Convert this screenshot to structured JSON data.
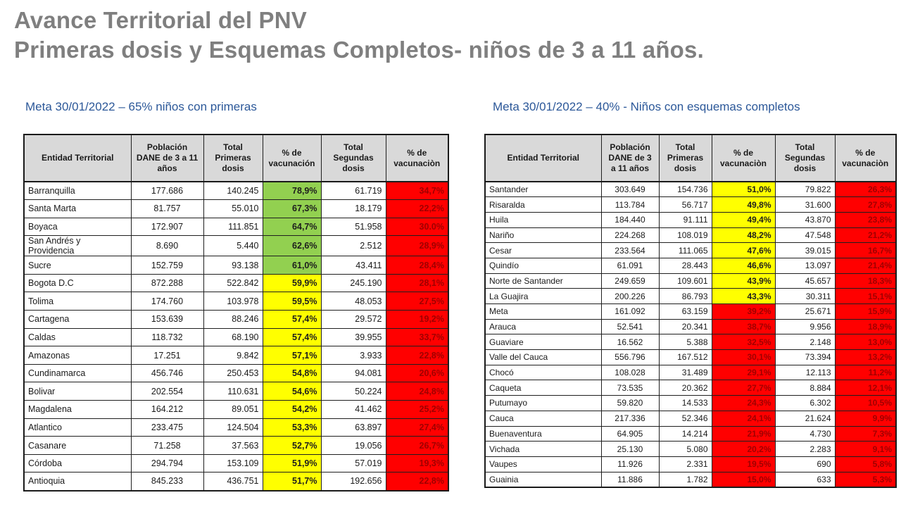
{
  "title": {
    "line1": "Avance Territorial del PNV",
    "line2": "Primeras dosis y Esquemas Completos- niños de 3 a 11 años."
  },
  "colors": {
    "title_gray": "#7f7f7f",
    "subtitle_blue": "#2c5899",
    "header_bg": "#d9d9d9",
    "green": "#92d050",
    "yellow": "#ffff00",
    "red": "#ff0000",
    "red_cell_text": "#a00000"
  },
  "tables": [
    {
      "subtitle": "Meta 30/01/2022 – 65% niños con primeras",
      "columns": [
        "Entidad Territorial",
        "Población DANE de 3 a 11 años",
        "Total Primeras dosis",
        "% de vacunación",
        "Total Segundas dosis",
        "% de vacunaciòn"
      ],
      "rows": [
        [
          "Barranquilla",
          "177.686",
          "140.245",
          "78,9%",
          "green",
          "61.719",
          "34,7%"
        ],
        [
          "Santa Marta",
          "81.757",
          "55.010",
          "67,3%",
          "green",
          "18.179",
          "22,2%"
        ],
        [
          "Boyaca",
          "172.907",
          "111.851",
          "64,7%",
          "green",
          "51.958",
          "30.0%"
        ],
        [
          "San Andrés y Providencia",
          "8.690",
          "5.440",
          "62,6%",
          "green",
          "2.512",
          "28,9%"
        ],
        [
          "Sucre",
          "152.759",
          "93.138",
          "61,0%",
          "green",
          "43.411",
          "28,4%"
        ],
        [
          "Bogota D.C",
          "872.288",
          "522.842",
          "59,9%",
          "yellow",
          "245.190",
          "28,1%"
        ],
        [
          "Tolima",
          "174.760",
          "103.978",
          "59,5%",
          "yellow",
          "48.053",
          "27,5%"
        ],
        [
          "Cartagena",
          "153.639",
          "88.246",
          "57,4%",
          "yellow",
          "29.572",
          "19,2%"
        ],
        [
          "Caldas",
          "118.732",
          "68.190",
          "57,4%",
          "yellow",
          "39.955",
          "33,7%"
        ],
        [
          "Amazonas",
          "17.251",
          "9.842",
          "57,1%",
          "yellow",
          "3.933",
          "22,8%"
        ],
        [
          "Cundinamarca",
          "456.746",
          "250.453",
          "54,8%",
          "yellow",
          "94.081",
          "20,6%"
        ],
        [
          "Bolivar",
          "202.554",
          "110.631",
          "54,6%",
          "yellow",
          "50.224",
          "24,8%"
        ],
        [
          "Magdalena",
          "164.212",
          "89.051",
          "54,2%",
          "yellow",
          "41.462",
          "25,2%"
        ],
        [
          "Atlantico",
          "233.475",
          "124.504",
          "53,3%",
          "yellow",
          "63.897",
          "27,4%"
        ],
        [
          "Casanare",
          "71.258",
          "37.563",
          "52,7%",
          "yellow",
          "19.056",
          "26,7%"
        ],
        [
          "Córdoba",
          "294.794",
          "153.109",
          "51,9%",
          "yellow",
          "57.019",
          "19,3%"
        ],
        [
          "Antioquia",
          "845.233",
          "436.751",
          "51,7%",
          "yellow",
          "192.656",
          "22,8%"
        ]
      ]
    },
    {
      "subtitle": "Meta 30/01/2022 – 40% - Niños con esquemas completos",
      "columns": [
        "Entidad Territorial",
        "Población DANE de 3 a 11 años",
        "Total Primeras dosis",
        "% de vacunaciòn",
        "Total Segundas dosis",
        "% de vacunaciòn"
      ],
      "rows": [
        [
          "Santander",
          "303.649",
          "154.736",
          "51,0%",
          "yellow",
          "79.822",
          "26,3%"
        ],
        [
          "Risaralda",
          "113.784",
          "56.717",
          "49,8%",
          "yellow",
          "31.600",
          "27,8%"
        ],
        [
          "Huila",
          "184.440",
          "91.111",
          "49,4%",
          "yellow",
          "43.870",
          "23,8%"
        ],
        [
          "Nariño",
          "224.268",
          "108.019",
          "48,2%",
          "yellow",
          "47.548",
          "21,2%"
        ],
        [
          "Cesar",
          "233.564",
          "111.065",
          "47,6%",
          "yellow",
          "39.015",
          "16,7%"
        ],
        [
          "Quindío",
          "61.091",
          "28.443",
          "46,6%",
          "yellow",
          "13.097",
          "21,4%"
        ],
        [
          "Norte de Santander",
          "249.659",
          "109.601",
          "43,9%",
          "yellow",
          "45.657",
          "18,3%"
        ],
        [
          "La Guajira",
          "200.226",
          "86.793",
          "43,3%",
          "yellow",
          "30.311",
          "15,1%"
        ],
        [
          "Meta",
          "161.092",
          "63.159",
          "39,2%",
          "red",
          "25.671",
          "15,9%"
        ],
        [
          "Arauca",
          "52.541",
          "20.341",
          "38,7%",
          "red",
          "9.956",
          "18,9%"
        ],
        [
          "Guaviare",
          "16.562",
          "5.388",
          "32,5%",
          "red",
          "2.148",
          "13,0%"
        ],
        [
          "Valle del Cauca",
          "556.796",
          "167.512",
          "30,1%",
          "red",
          "73.394",
          "13,2%"
        ],
        [
          "Chocó",
          "108.028",
          "31.489",
          "29,1%",
          "red",
          "12.113",
          "11,2%"
        ],
        [
          "Caqueta",
          "73.535",
          "20.362",
          "27,7%",
          "red",
          "8.884",
          "12,1%"
        ],
        [
          "Putumayo",
          "59.820",
          "14.533",
          "24,3%",
          "red",
          "6.302",
          "10,5%"
        ],
        [
          "Cauca",
          "217.336",
          "52.346",
          "24,1%",
          "red",
          "21.624",
          "9,9%"
        ],
        [
          "Buenaventura",
          "64.905",
          "14.214",
          "21,9%",
          "red",
          "4.730",
          "7,3%"
        ],
        [
          "Vichada",
          "25.130",
          "5.080",
          "20,2%",
          "red",
          "2.283",
          "9,1%"
        ],
        [
          "Vaupes",
          "11.926",
          "2.331",
          "19,5%",
          "red",
          "690",
          "5,8%"
        ],
        [
          "Guainia",
          "11.886",
          "1.782",
          "15,0%",
          "red",
          "633",
          "5,3%"
        ]
      ]
    }
  ]
}
